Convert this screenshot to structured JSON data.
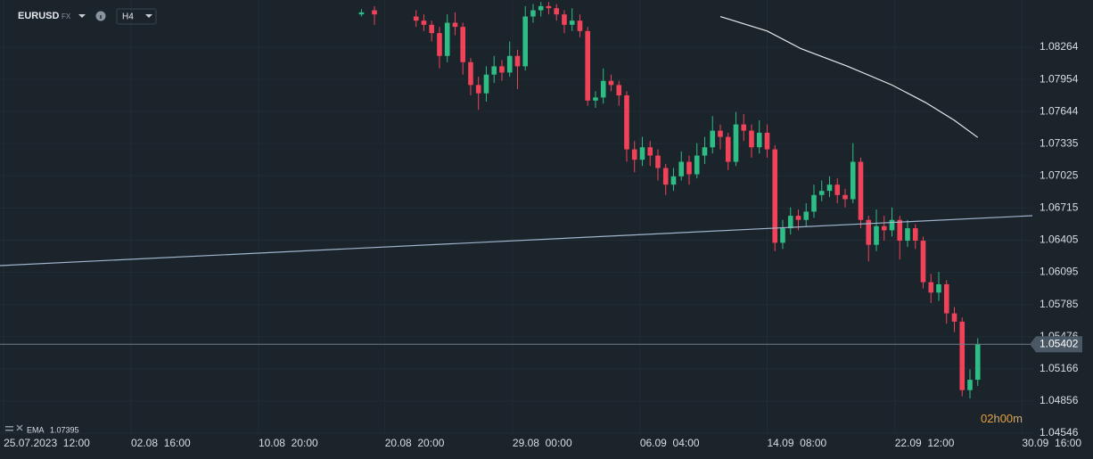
{
  "header": {
    "symbol": "EURUSD",
    "market": "FX",
    "timeframe": "H4"
  },
  "chart_data": {
    "type": "candlestick",
    "xlim": [
      0,
      397
    ],
    "ylim": [
      1.04537,
      1.08719
    ],
    "xticks": [
      {
        "value": 1.4,
        "label": "25.07.2023  12:00"
      },
      {
        "value": 50.4,
        "label": "02.08  16:00"
      },
      {
        "value": 99.4,
        "label": "10.08  20:00"
      },
      {
        "value": 148,
        "label": "20.08  20:00"
      },
      {
        "value": 197.1,
        "label": "29.08  00:00"
      },
      {
        "value": 246.1,
        "label": "06.09  04:00"
      },
      {
        "value": 295,
        "label": "14.09  08:00"
      },
      {
        "value": 344.1,
        "label": "22.09  12:00"
      },
      {
        "value": 393,
        "label": "30.09  16:00"
      }
    ],
    "yticks": [
      1.08264,
      1.07954,
      1.07644,
      1.07335,
      1.07025,
      1.06715,
      1.06405,
      1.06095,
      1.05785,
      1.05476,
      1.05166,
      1.04856,
      1.04546
    ],
    "grid": true,
    "up_color": "#2ebd85",
    "down_color": "#f0435a",
    "x": [
      139,
      144,
      160,
      163,
      166,
      169,
      172,
      175,
      178,
      181,
      184,
      187,
      190,
      193,
      196,
      199,
      202,
      205,
      208,
      211,
      214,
      217,
      220,
      223,
      226,
      229,
      232,
      235,
      238,
      241,
      244,
      247,
      250,
      253,
      256,
      259,
      262,
      265,
      268,
      271,
      274,
      277,
      280,
      283,
      286,
      289,
      292,
      295,
      298,
      301,
      304,
      307,
      310,
      313,
      316,
      319,
      322,
      325,
      328,
      331,
      334,
      337,
      340,
      343,
      346,
      349,
      352,
      355,
      358,
      361,
      364,
      367,
      370,
      373,
      376
    ],
    "open": [
      1.0858,
      1.0862,
      1.0856,
      1.0852,
      1.0848,
      1.084,
      1.0818,
      1.085,
      1.0846,
      1.0812,
      1.079,
      1.0782,
      1.08,
      1.0808,
      1.0802,
      1.0818,
      1.0808,
      1.0856,
      1.0862,
      1.0866,
      1.0864,
      1.0858,
      1.0848,
      1.0852,
      1.0842,
      1.0775,
      1.0778,
      1.0794,
      1.079,
      1.078,
      1.0728,
      1.0718,
      1.073,
      1.0722,
      1.071,
      1.0694,
      1.0702,
      1.0716,
      1.0704,
      1.0722,
      1.073,
      1.0746,
      1.074,
      1.0716,
      1.0752,
      1.0746,
      1.073,
      1.0744,
      1.0728,
      1.0638,
      1.0652,
      1.0664,
      1.066,
      1.0668,
      1.0684,
      1.0688,
      1.0694,
      1.0684,
      1.068,
      1.0716,
      1.066,
      1.0636,
      1.0654,
      1.065,
      1.066,
      1.064,
      1.0652,
      1.064,
      1.06,
      1.059,
      1.0598,
      1.057,
      1.0562,
      1.0496,
      1.0506
    ],
    "high": [
      1.0863,
      1.0866,
      1.0862,
      1.0858,
      1.0852,
      1.0846,
      1.0858,
      1.086,
      1.085,
      1.0816,
      1.0798,
      1.0808,
      1.0818,
      1.0814,
      1.0832,
      1.0824,
      1.0866,
      1.0868,
      1.087,
      1.087,
      1.0868,
      1.0862,
      1.0864,
      1.0858,
      1.0846,
      1.0784,
      1.0806,
      1.08,
      1.0794,
      1.0784,
      1.0736,
      1.074,
      1.0736,
      1.0728,
      1.0714,
      1.071,
      1.0726,
      1.0722,
      1.0734,
      1.074,
      1.076,
      1.0752,
      1.0744,
      1.0764,
      1.0762,
      1.0752,
      1.0756,
      1.0752,
      1.0732,
      1.066,
      1.0672,
      1.067,
      1.0676,
      1.0694,
      1.0698,
      1.0702,
      1.07,
      1.069,
      1.0734,
      1.072,
      1.0664,
      1.067,
      1.0664,
      1.0672,
      1.0664,
      1.066,
      1.0656,
      1.0644,
      1.0608,
      1.061,
      1.0602,
      1.0576,
      1.0566,
      1.0516,
      1.0546
    ],
    "low": [
      1.0856,
      1.0848,
      1.0846,
      1.0842,
      1.0832,
      1.0806,
      1.0812,
      1.0838,
      1.08,
      1.078,
      1.0766,
      1.0774,
      1.0792,
      1.0794,
      1.0798,
      1.0786,
      1.0804,
      1.085,
      1.0856,
      1.0858,
      1.0852,
      1.084,
      1.0842,
      1.0836,
      1.077,
      1.0768,
      1.0772,
      1.0784,
      1.077,
      1.0716,
      1.0706,
      1.0712,
      1.0712,
      1.0698,
      1.0684,
      1.0688,
      1.0698,
      1.0694,
      1.07,
      1.0714,
      1.0724,
      1.0728,
      1.0708,
      1.0712,
      1.0736,
      1.072,
      1.0724,
      1.072,
      1.063,
      1.0632,
      1.0646,
      1.065,
      1.0654,
      1.0662,
      1.0678,
      1.0682,
      1.0676,
      1.0672,
      1.0676,
      1.0652,
      1.062,
      1.063,
      1.064,
      1.0644,
      1.0622,
      1.0634,
      1.0632,
      1.0594,
      1.058,
      1.0582,
      1.056,
      1.0552,
      1.049,
      1.0488,
      1.05
    ],
    "close": [
      1.086,
      1.0858,
      1.0852,
      1.0848,
      1.084,
      1.0818,
      1.085,
      1.0846,
      1.0812,
      1.079,
      1.0782,
      1.08,
      1.0808,
      1.0802,
      1.0818,
      1.0808,
      1.0856,
      1.0862,
      1.0866,
      1.0864,
      1.0858,
      1.0848,
      1.0852,
      1.0842,
      1.0775,
      1.0778,
      1.0794,
      1.079,
      1.078,
      1.0728,
      1.0718,
      1.073,
      1.0722,
      1.071,
      1.0694,
      1.0702,
      1.0716,
      1.0704,
      1.0722,
      1.073,
      1.0746,
      1.074,
      1.0716,
      1.0752,
      1.0746,
      1.073,
      1.0744,
      1.0728,
      1.0638,
      1.0652,
      1.0664,
      1.066,
      1.0668,
      1.0684,
      1.0688,
      1.0694,
      1.0684,
      1.068,
      1.0716,
      1.066,
      1.0636,
      1.0654,
      1.065,
      1.066,
      1.064,
      1.0652,
      1.064,
      1.06,
      1.059,
      1.0598,
      1.057,
      1.0562,
      1.0496,
      1.0506,
      1.05402
    ],
    "ema": {
      "name": "EMA",
      "last_value": 1.07395,
      "color": "#e8e8e8",
      "x": [
        277,
        295,
        308,
        326,
        343,
        356,
        367,
        376
      ],
      "values": [
        1.0856,
        1.0842,
        1.0825,
        1.0808,
        1.079,
        1.0773,
        1.0756,
        1.07395
      ]
    },
    "trendline": {
      "color": "#9fb6cc",
      "x": [
        0,
        397
      ],
      "values": [
        1.0616,
        1.06641
      ]
    },
    "last_price": 1.05402,
    "countdown": [
      "02",
      "h",
      "00",
      "m"
    ]
  }
}
